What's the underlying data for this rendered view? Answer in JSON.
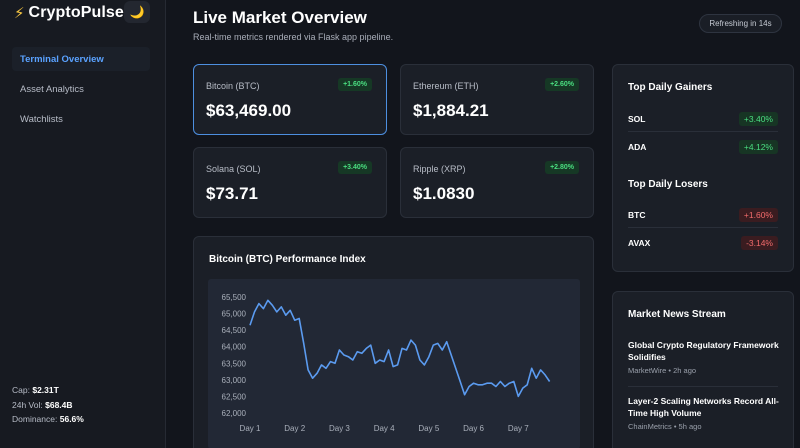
{
  "brand": {
    "icon": "⚡",
    "name": "CryptoPulse",
    "theme_icon": "🌙"
  },
  "nav": [
    {
      "label": "Terminal Overview",
      "active": true
    },
    {
      "label": "Asset Analytics",
      "active": false
    },
    {
      "label": "Watchlists",
      "active": false
    }
  ],
  "stats": {
    "cap_label": "Cap:",
    "cap_value": "$2.31T",
    "vol_label": "24h Vol:",
    "vol_value": "$68.4B",
    "dom_label": "Dominance:",
    "dom_value": "56.6%"
  },
  "header": {
    "title": "Live Market Overview",
    "subtitle": "Real-time metrics rendered via Flask app pipeline.",
    "refresh": "Refreshing in 14s"
  },
  "cards": [
    {
      "name": "Bitcoin (BTC)",
      "change": "+1.60%",
      "price": "$63,469.00"
    },
    {
      "name": "Ethereum (ETH)",
      "change": "+2.60%",
      "price": "$1,884.21"
    },
    {
      "name": "Solana (SOL)",
      "change": "+3.40%",
      "price": "$73.71"
    },
    {
      "name": "Ripple (XRP)",
      "change": "+2.80%",
      "price": "$1.0830"
    }
  ],
  "gainers": {
    "title": "Top Daily Gainers",
    "items": [
      {
        "symbol": "SOL",
        "change": "+3.40%"
      },
      {
        "symbol": "ADA",
        "change": "+4.12%"
      }
    ]
  },
  "losers": {
    "title": "Top Daily Losers",
    "items": [
      {
        "symbol": "BTC",
        "change": "+1.60%"
      },
      {
        "symbol": "AVAX",
        "change": "-3.14%"
      }
    ]
  },
  "news": {
    "title": "Market News Stream",
    "items": [
      {
        "headline": "Global Crypto Regulatory Framework Solidifies",
        "meta": "MarketWire • 2h ago"
      },
      {
        "headline": "Layer-2 Scaling Networks Record All-Time High Volume",
        "meta": "ChainMetrics • 5h ago"
      }
    ]
  },
  "colors": {
    "accent": "#5aa2ff",
    "up": "#4ade80",
    "down": "#f26b6b",
    "line": "#5b9bf0"
  },
  "chart_data": {
    "type": "line",
    "title": "Bitcoin (BTC) Performance Index",
    "x_ticks": [
      "Day 1",
      "Day 2",
      "Day 3",
      "Day 4",
      "Day 5",
      "Day 6",
      "Day 7"
    ],
    "y_ticks": [
      "65,500",
      "65,000",
      "64,500",
      "64,000",
      "63,500",
      "63,000",
      "62,500",
      "62,000"
    ],
    "ylim": [
      62000,
      65500
    ],
    "xlim": [
      1,
      8
    ],
    "grid": false,
    "series": [
      {
        "x": [
          1.0,
          1.1,
          1.2,
          1.3,
          1.4,
          1.5,
          1.6,
          1.7,
          1.8,
          1.9,
          2.0,
          2.1,
          2.2,
          2.3,
          2.4,
          2.5,
          2.6,
          2.7,
          2.8,
          2.9,
          3.0,
          3.1,
          3.2,
          3.3,
          3.4,
          3.5,
          3.6,
          3.7,
          3.8,
          3.9,
          4.0,
          4.1,
          4.2,
          4.3,
          4.4,
          4.5,
          4.6,
          4.7,
          4.8,
          4.9,
          5.0,
          5.1,
          5.2,
          5.3,
          5.4,
          5.5,
          5.6,
          5.7,
          5.8,
          5.9,
          6.0,
          6.1,
          6.2,
          6.3,
          6.4,
          6.5,
          6.6,
          6.7,
          6.8,
          6.9,
          7.0,
          7.1,
          7.2,
          7.3,
          7.4,
          7.5,
          7.6,
          7.7
        ],
        "y": [
          64650,
          65050,
          65300,
          65150,
          65400,
          65250,
          65050,
          65200,
          64950,
          65100,
          64800,
          64850,
          64100,
          63300,
          63050,
          63200,
          63450,
          63350,
          63550,
          63500,
          63900,
          63750,
          63700,
          63600,
          63850,
          63800,
          63950,
          64050,
          63500,
          63600,
          63550,
          63900,
          63400,
          63450,
          63950,
          63900,
          64200,
          64050,
          63600,
          63450,
          63700,
          64050,
          64100,
          63900,
          64150,
          63750,
          63350,
          62950,
          62550,
          62800,
          62900,
          62850,
          62850,
          62900,
          62900,
          62800,
          62950,
          62800,
          62900,
          62950,
          62500,
          62750,
          62850,
          63350,
          63050,
          63300,
          63150,
          62950
        ]
      }
    ]
  }
}
